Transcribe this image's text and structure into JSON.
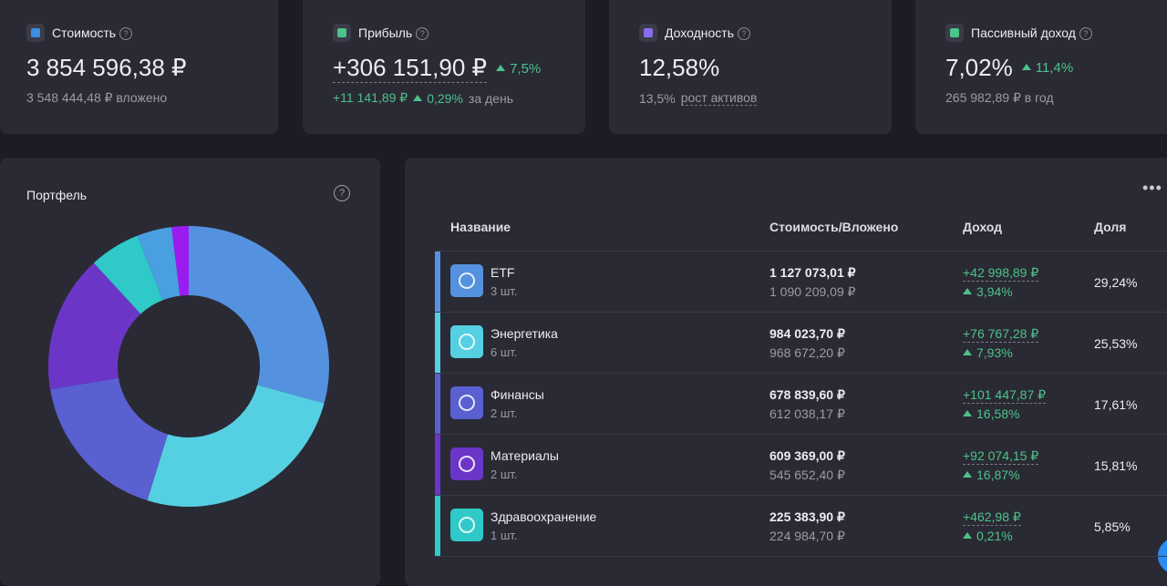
{
  "cards": [
    {
      "label": "Стоимость",
      "value": "3 854 596,38 ₽",
      "sub_text": "3 548 444,48 ₽ вложено"
    },
    {
      "label": "Прибыль",
      "value": "+306 151,90 ₽",
      "change": "7,5%",
      "sub_value": "+11 141,89 ₽",
      "sub_change": "0,29%",
      "sub_text": "за день"
    },
    {
      "label": "Доходность",
      "value": "12,58%",
      "sub_value": "13,5%",
      "sub_text": "рост активов"
    },
    {
      "label": "Пассивный доход",
      "value": "7,02%",
      "change": "11,4%",
      "sub_text": "265 982,89 ₽ в год"
    }
  ],
  "portfolio": {
    "title": "Портфель",
    "values": [
      29.24,
      25.53,
      17.61,
      15.81,
      5.85,
      4.0,
      1.96
    ],
    "colors": [
      "#5492e0",
      "#55d0e2",
      "#5a5fd2",
      "#6b36c8",
      "#2fc9c8",
      "#4a9fe0",
      "#9b1cf0"
    ]
  },
  "table": {
    "headers": [
      "Название",
      "Стоимость/Вложено",
      "Доход",
      "Доля"
    ],
    "rows": [
      {
        "name": "ETF",
        "count": "3 шт.",
        "value": "1 127 073,01 ₽",
        "invested": "1 090 209,09 ₽",
        "income": "+42 998,89 ₽",
        "income_pct": "3,94%",
        "share": "29,24%",
        "color": "#5492e0"
      },
      {
        "name": "Энергетика",
        "count": "6 шт.",
        "value": "984 023,70 ₽",
        "invested": "968 672,20 ₽",
        "income": "+76 767,28 ₽",
        "income_pct": "7,93%",
        "share": "25,53%",
        "color": "#55d0e2"
      },
      {
        "name": "Финансы",
        "count": "2 шт.",
        "value": "678 839,60 ₽",
        "invested": "612 038,17 ₽",
        "income": "+101 447,87 ₽",
        "income_pct": "16,58%",
        "share": "17,61%",
        "color": "#5a5fd2"
      },
      {
        "name": "Материалы",
        "count": "2 шт.",
        "value": "609 369,00 ₽",
        "invested": "545 652,40 ₽",
        "income": "+92 074,15 ₽",
        "income_pct": "16,87%",
        "share": "15,81%",
        "color": "#6b36c8"
      },
      {
        "name": "Здравоохранение",
        "count": "1 шт.",
        "value": "225 383,90 ₽",
        "invested": "224 984,70 ₽",
        "income": "+462,98 ₽",
        "income_pct": "0,21%",
        "share": "5,85%",
        "color": "#2fc9c8"
      }
    ]
  }
}
